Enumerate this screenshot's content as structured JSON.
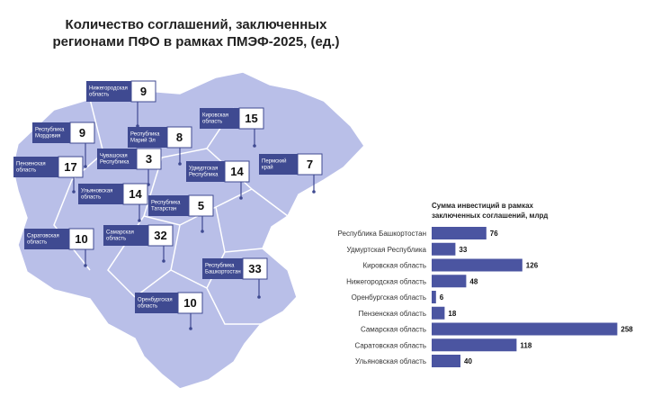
{
  "title": [
    "Количество соглашений, заключенных",
    "регионами ПФО в рамках ПМЭФ-2025, (ед.)"
  ],
  "map": {
    "regions": [
      {
        "name": [
          "Нижегородская",
          "область"
        ],
        "value": 9
      },
      {
        "name": [
          "Республика",
          "Мордовия"
        ],
        "value": 9
      },
      {
        "name": [
          "Пензенская",
          "область"
        ],
        "value": 17
      },
      {
        "name": [
          "Республика",
          "Марий Эл"
        ],
        "value": 8
      },
      {
        "name": [
          "Чувашская",
          "Республика"
        ],
        "value": 3
      },
      {
        "name": [
          "Кировская",
          "область"
        ],
        "value": 15
      },
      {
        "name": [
          "Удмуртская",
          "Республика"
        ],
        "value": 14
      },
      {
        "name": [
          "Пермский",
          "край"
        ],
        "value": 7
      },
      {
        "name": [
          "Ульяновская",
          "область"
        ],
        "value": 14
      },
      {
        "name": [
          "Республика",
          "Татарстан"
        ],
        "value": 5
      },
      {
        "name": [
          "Саратовская",
          "область"
        ],
        "value": 10
      },
      {
        "name": [
          "Самарская",
          "область"
        ],
        "value": 32
      },
      {
        "name": [
          "Республика",
          "Башкортостан"
        ],
        "value": 33
      },
      {
        "name": [
          "Оренбургская",
          "область"
        ],
        "value": 10
      }
    ]
  },
  "chart_data": {
    "type": "bar",
    "orientation": "horizontal",
    "title": [
      "Сумма инвестиций в рамках",
      "заключенных соглашений, млрд"
    ],
    "categories": [
      "Республика Башкортостан",
      "Удмуртская Республика",
      "Кировская область",
      "Нижегородская область",
      "Оренбургская область",
      "Пензенская область",
      "Самарская область",
      "Саратовская область",
      "Ульяновская область"
    ],
    "values": [
      76,
      33,
      126,
      48,
      6,
      18,
      258,
      118,
      40
    ],
    "color": "#4b55a1"
  }
}
